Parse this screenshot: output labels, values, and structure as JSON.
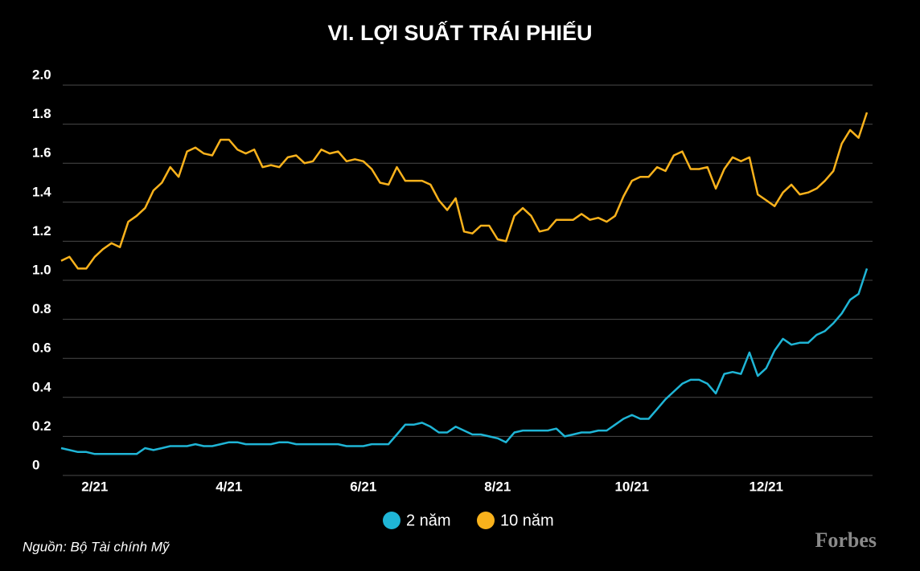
{
  "chart_data": {
    "type": "line",
    "title": "VI. LỢI SUẤT TRÁI PHIẾU",
    "source": "Nguồn: Bộ Tài chính Mỹ",
    "brand": "Forbes",
    "categories": [
      null,
      null,
      null,
      null,
      "2/21",
      null,
      null,
      null,
      null,
      null,
      null,
      null,
      null,
      null,
      null,
      null,
      null,
      null,
      null,
      null,
      "4/21",
      null,
      null,
      null,
      null,
      null,
      null,
      null,
      null,
      null,
      null,
      null,
      null,
      null,
      null,
      null,
      "6/21",
      null,
      null,
      null,
      null,
      null,
      null,
      null,
      null,
      null,
      null,
      null,
      null,
      null,
      null,
      null,
      "8/21",
      null,
      null,
      null,
      null,
      null,
      null,
      null,
      null,
      null,
      null,
      null,
      null,
      null,
      null,
      null,
      "10/21",
      null,
      null,
      null,
      null,
      null,
      null,
      null,
      null,
      null,
      null,
      null,
      null,
      null,
      null,
      null,
      "12/21",
      null,
      null,
      null,
      null,
      null,
      null,
      null,
      null,
      null,
      null,
      null,
      null
    ],
    "series": [
      {
        "name": "2 năm",
        "color": "#1fb5d6",
        "values": [
          0.14,
          0.13,
          0.12,
          0.12,
          0.11,
          0.11,
          0.11,
          0.11,
          0.11,
          0.11,
          0.14,
          0.13,
          0.14,
          0.15,
          0.15,
          0.15,
          0.16,
          0.15,
          0.15,
          0.16,
          0.17,
          0.17,
          0.16,
          0.16,
          0.16,
          0.16,
          0.17,
          0.17,
          0.16,
          0.16,
          0.16,
          0.16,
          0.16,
          0.16,
          0.15,
          0.15,
          0.15,
          0.16,
          0.16,
          0.16,
          0.21,
          0.26,
          0.26,
          0.27,
          0.25,
          0.22,
          0.22,
          0.25,
          0.23,
          0.21,
          0.21,
          0.2,
          0.19,
          0.17,
          0.22,
          0.23,
          0.23,
          0.23,
          0.23,
          0.24,
          0.2,
          0.21,
          0.22,
          0.22,
          0.23,
          0.23,
          0.26,
          0.29,
          0.31,
          0.29,
          0.29,
          0.34,
          0.39,
          0.43,
          0.47,
          0.49,
          0.49,
          0.47,
          0.42,
          0.52,
          0.53,
          0.52,
          0.63,
          0.51,
          0.55,
          0.64,
          0.7,
          0.67,
          0.68,
          0.68,
          0.72,
          0.74,
          0.78,
          0.83,
          0.9,
          0.93,
          1.06
        ]
      },
      {
        "name": "10 năm",
        "color": "#f9b21c",
        "values": [
          1.1,
          1.12,
          1.06,
          1.06,
          1.12,
          1.16,
          1.19,
          1.17,
          1.3,
          1.33,
          1.37,
          1.46,
          1.5,
          1.58,
          1.53,
          1.66,
          1.68,
          1.65,
          1.64,
          1.72,
          1.72,
          1.67,
          1.65,
          1.67,
          1.58,
          1.59,
          1.58,
          1.63,
          1.64,
          1.6,
          1.61,
          1.67,
          1.65,
          1.66,
          1.61,
          1.62,
          1.61,
          1.57,
          1.5,
          1.49,
          1.58,
          1.51,
          1.51,
          1.51,
          1.49,
          1.41,
          1.36,
          1.42,
          1.25,
          1.24,
          1.28,
          1.28,
          1.21,
          1.2,
          1.33,
          1.37,
          1.33,
          1.25,
          1.26,
          1.31,
          1.31,
          1.31,
          1.34,
          1.31,
          1.32,
          1.3,
          1.33,
          1.43,
          1.51,
          1.53,
          1.53,
          1.58,
          1.56,
          1.64,
          1.66,
          1.57,
          1.57,
          1.58,
          1.47,
          1.57,
          1.63,
          1.61,
          1.63,
          1.44,
          1.41,
          1.38,
          1.45,
          1.49,
          1.44,
          1.45,
          1.47,
          1.51,
          1.56,
          1.7,
          1.77,
          1.73,
          1.86
        ]
      }
    ],
    "ylim": [
      0,
      2
    ],
    "yticks": [
      0,
      0.2,
      0.4,
      0.6,
      0.8,
      {
        "value": 1,
        "label": "1.0"
      },
      1.2,
      1.4,
      1.6,
      1.8,
      {
        "value": 2,
        "label": "2.0"
      }
    ],
    "grid": true,
    "legend": "bottom"
  }
}
